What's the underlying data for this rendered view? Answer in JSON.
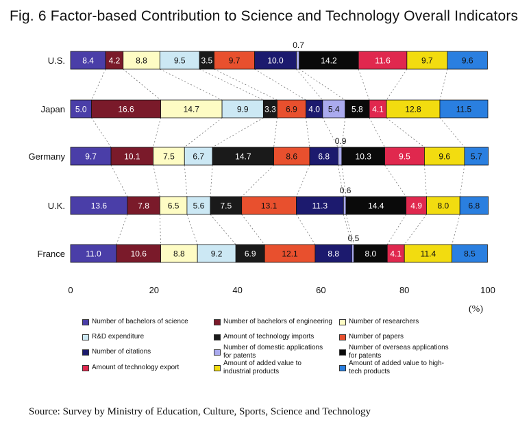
{
  "title": "Fig. 6    Factor-based Contribution to Science and Technology Overall Indicators",
  "source": "Source:    Survey by Ministry of Education, Culture, Sports, Science and Technology",
  "chart_data": {
    "type": "bar",
    "orientation": "horizontal",
    "stacked": true,
    "categories": [
      "U.S.",
      "Japan",
      "Germany",
      "U.K.",
      "France"
    ],
    "xlim": [
      0,
      100
    ],
    "xticks": [
      0,
      20,
      40,
      60,
      80,
      100
    ],
    "xunit": "(%)",
    "grid": false,
    "legend_position": "bottom",
    "series": [
      {
        "name": "Number of bachelors of science",
        "color": "#4a3ea8",
        "label_color": "#ffffff",
        "values": [
          8.4,
          5.0,
          9.7,
          13.6,
          11.0
        ]
      },
      {
        "name": "Number of bachelors of engineering",
        "color": "#7a1a2a",
        "label_color": "#ffffff",
        "values": [
          4.2,
          16.6,
          10.1,
          7.8,
          10.6
        ]
      },
      {
        "name": "Number of researchers",
        "color": "#fefcc4",
        "label_color": "#111111",
        "values": [
          8.8,
          14.7,
          7.5,
          6.5,
          8.8
        ]
      },
      {
        "name": "R&D expenditure",
        "color": "#cce8f4",
        "label_color": "#111111",
        "values": [
          9.5,
          9.9,
          6.7,
          5.6,
          9.2
        ]
      },
      {
        "name": "Amount of technology imports",
        "color": "#1a1a1a",
        "label_color": "#ffffff",
        "values": [
          3.5,
          3.3,
          14.7,
          7.5,
          6.9
        ]
      },
      {
        "name": "Number of papers",
        "color": "#e8502e",
        "label_color": "#111111",
        "values": [
          9.7,
          6.9,
          8.6,
          13.1,
          12.1
        ]
      },
      {
        "name": "Number of citations",
        "color": "#1c1a6e",
        "label_color": "#ffffff",
        "values": [
          10.0,
          4.0,
          6.8,
          11.3,
          8.8
        ]
      },
      {
        "name": "Number of domestic applications for patents",
        "color": "#aaaaee",
        "label_color": "#111111",
        "values": [
          0.7,
          5.4,
          0.9,
          0.6,
          0.5
        ]
      },
      {
        "name": "Number of overseas applications for patents",
        "color": "#0a0a0a",
        "label_color": "#ffffff",
        "values": [
          14.2,
          5.8,
          10.3,
          14.4,
          8.0
        ]
      },
      {
        "name": "Amount of technology export",
        "color": "#e0284e",
        "label_color": "#ffffff",
        "values": [
          11.6,
          4.1,
          9.5,
          4.9,
          4.1
        ]
      },
      {
        "name": "Amount of added value to industrial products",
        "color": "#f2dc10",
        "label_color": "#111111",
        "values": [
          9.7,
          12.8,
          9.6,
          8.0,
          11.4
        ]
      },
      {
        "name": "Amount of added value to high-tech products",
        "color": "#2a7fe0",
        "label_color": "#111111",
        "values": [
          9.6,
          11.5,
          5.7,
          6.8,
          8.5
        ]
      }
    ],
    "legend": [
      {
        "name": "Number of bachelors of science",
        "color": "#4a3ea8"
      },
      {
        "name": "Number of bachelors of engineering",
        "color": "#7a1a2a"
      },
      {
        "name": "Number of researchers",
        "color": "#fefcc4"
      },
      {
        "name": "R&D expenditure",
        "color": "#cce8f4"
      },
      {
        "name": "Amount of technology imports",
        "color": "#1a1a1a"
      },
      {
        "name": "Number of papers",
        "color": "#e8502e"
      },
      {
        "name": "Number of citations",
        "color": "#1c1a6e"
      },
      {
        "name": "Number of domestic applications for patents",
        "color": "#aaaaee"
      },
      {
        "name": "Number of overseas applications for patents",
        "color": "#0a0a0a"
      },
      {
        "name": "Amount of technology export",
        "color": "#e0284e"
      },
      {
        "name": "Amount of added value to industrial products",
        "color": "#f2dc10"
      },
      {
        "name": "Amount of added value to high-tech products",
        "color": "#2a7fe0"
      }
    ]
  }
}
